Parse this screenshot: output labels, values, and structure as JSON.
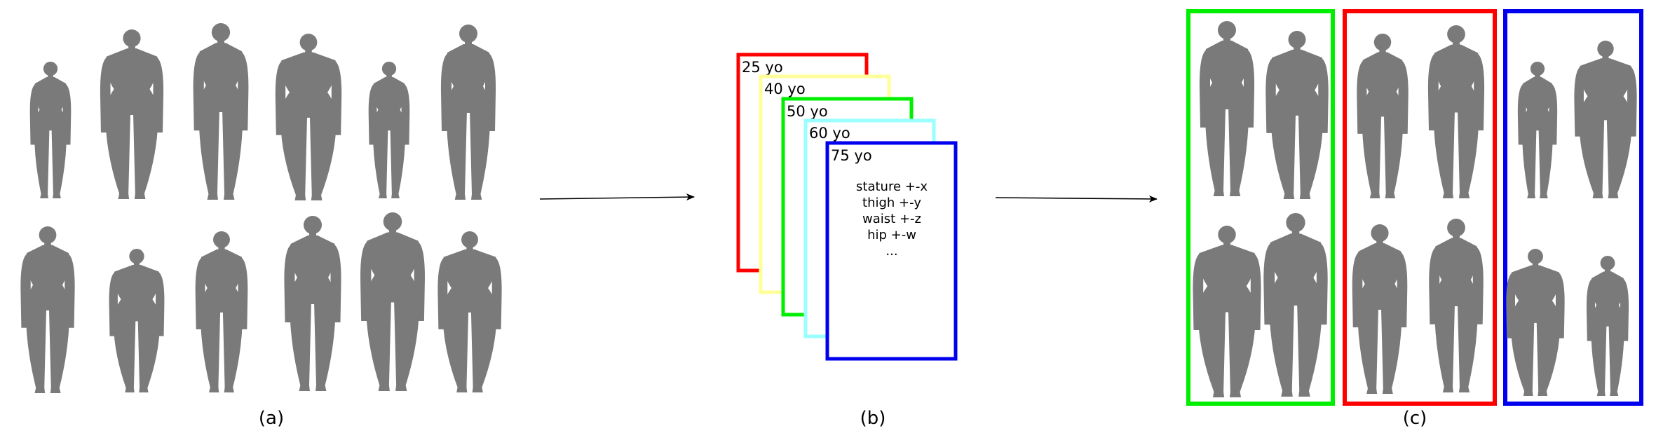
{
  "panels": {
    "a": {
      "caption": "(a)"
    },
    "b": {
      "caption": "(b)",
      "cards": [
        {
          "label": "25 yo",
          "color": "#ff0000"
        },
        {
          "label": "40 yo",
          "color": "#ffff99"
        },
        {
          "label": "50 yo",
          "color": "#00ee00"
        },
        {
          "label": "60 yo",
          "color": "#99ffff"
        },
        {
          "label": "75 yo",
          "color": "#0000ee"
        }
      ],
      "criteria": [
        "stature +-x",
        "thigh +-y",
        "waist +-z",
        "hip +-w",
        "..."
      ]
    },
    "c": {
      "caption": "(c)",
      "groups": [
        {
          "color": "#00ee00"
        },
        {
          "color": "#ff0000"
        },
        {
          "color": "#0000ee"
        }
      ]
    }
  },
  "figure_shade": "#7a7a7a"
}
